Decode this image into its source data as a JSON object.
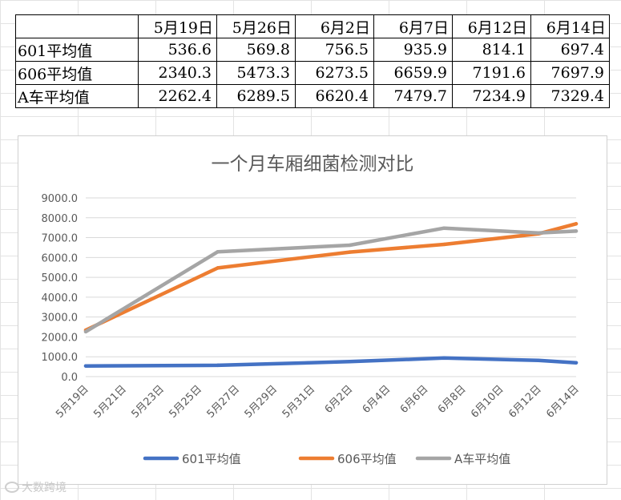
{
  "table": {
    "headers": [
      "",
      "5月19日",
      "5月26日",
      "6月2日",
      "6月7日",
      "6月12日",
      "6月14日"
    ],
    "rows": [
      {
        "label": "601平均值",
        "values": [
          "536.6",
          "569.8",
          "756.5",
          "935.9",
          "814.1",
          "697.4"
        ]
      },
      {
        "label": "606平均值",
        "values": [
          "2340.3",
          "5473.3",
          "6273.5",
          "6659.9",
          "7191.6",
          "7697.9"
        ]
      },
      {
        "label": "A车平均值",
        "values": [
          "2262.4",
          "6289.5",
          "6620.4",
          "7479.7",
          "7234.9",
          "7329.4"
        ]
      }
    ]
  },
  "chart_data": {
    "type": "line",
    "title": "一个月车厢细菌检测对比",
    "xlabel": "",
    "ylabel": "",
    "x_dates": [
      "5月19日",
      "5月26日",
      "6月2日",
      "6月7日",
      "6月12日",
      "6月14日"
    ],
    "x_day_offsets": [
      0,
      7,
      14,
      19,
      24,
      26
    ],
    "x_ticks": [
      "5月19日",
      "5月21日",
      "5月23日",
      "5月25日",
      "5月27日",
      "5月29日",
      "5月31日",
      "6月2日",
      "6月4日",
      "6月6日",
      "6月8日",
      "6月10日",
      "6月12日",
      "6月14日"
    ],
    "x_range": [
      0,
      26
    ],
    "y_ticks": [
      "0.0",
      "1000.0",
      "2000.0",
      "3000.0",
      "4000.0",
      "5000.0",
      "6000.0",
      "7000.0",
      "8000.0",
      "9000.0"
    ],
    "ylim": [
      0,
      9000
    ],
    "grid": true,
    "legend_position": "bottom",
    "series": [
      {
        "name": "601平均值",
        "color": "#4472c4",
        "values": [
          536.6,
          569.8,
          756.5,
          935.9,
          814.1,
          697.4
        ]
      },
      {
        "name": "606平均值",
        "color": "#ed7d31",
        "values": [
          2340.3,
          5473.3,
          6273.5,
          6659.9,
          7191.6,
          7697.9
        ]
      },
      {
        "name": "A车平均值",
        "color": "#a5a5a5",
        "values": [
          2262.4,
          6289.5,
          6620.4,
          7479.7,
          7234.9,
          7329.4
        ]
      }
    ]
  },
  "watermark": {
    "text": "大数跨境"
  },
  "colors": {
    "gridline": "#d9d9d9",
    "axis_text": "#595959",
    "title_text": "#595959"
  }
}
